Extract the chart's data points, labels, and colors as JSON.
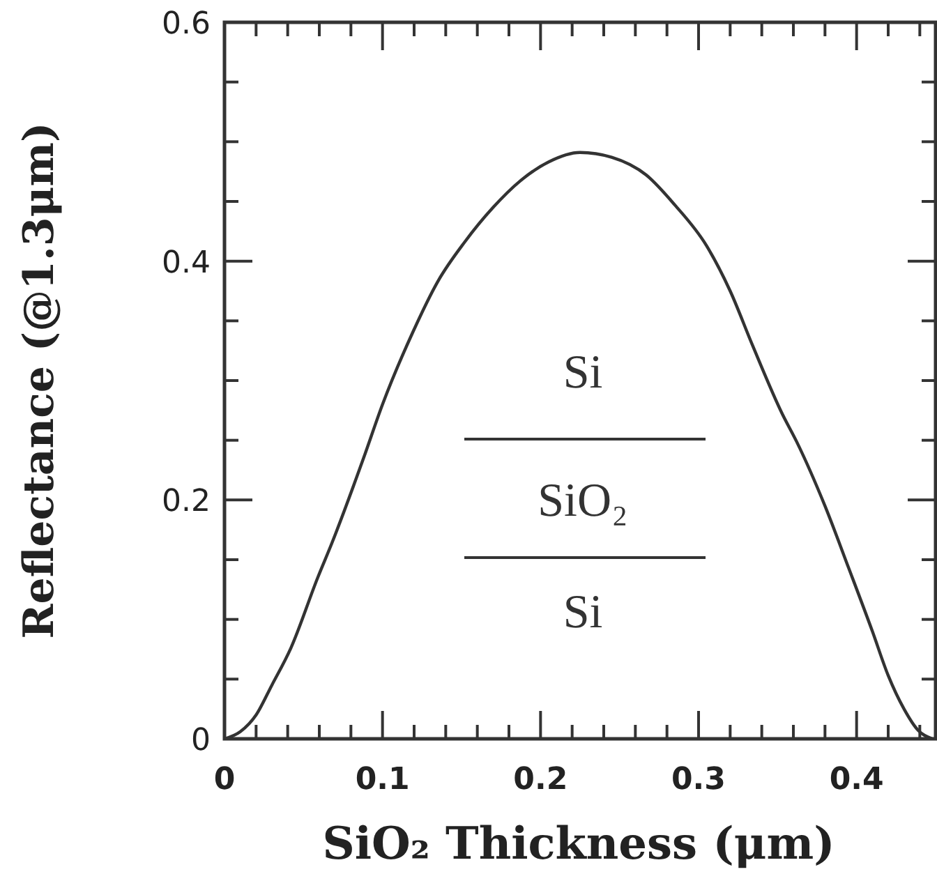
{
  "chart_data": {
    "type": "line",
    "xlabel": "SiO₂ Thickness (μm)",
    "ylabel": "Reflectance (@1.3μm)",
    "annotations": [
      "Si",
      "SiO₂",
      "Si"
    ],
    "x": [
      0,
      0.01,
      0.02,
      0.03,
      0.042,
      0.059,
      0.068,
      0.088,
      0.1,
      0.119,
      0.135,
      0.152,
      0.17,
      0.187,
      0.205,
      0.225,
      0.245,
      0.267,
      0.285,
      0.305,
      0.32,
      0.334,
      0.353,
      0.362,
      0.38,
      0.395,
      0.41,
      0.42,
      0.43,
      0.439,
      0.448
    ],
    "series": [
      {
        "color": "#333333",
        "values": [
          0,
          0.006,
          0.02,
          0.045,
          0.076,
          0.135,
          0.164,
          0.235,
          0.28,
          0.34,
          0.383,
          0.416,
          0.445,
          0.467,
          0.483,
          0.491,
          0.487,
          0.472,
          0.447,
          0.413,
          0.375,
          0.33,
          0.272,
          0.249,
          0.195,
          0.143,
          0.09,
          0.053,
          0.025,
          0.007,
          0
        ]
      }
    ],
    "xlim": [
      0,
      0.45
    ],
    "xticks": [
      0,
      {
        "value": 0.02,
        "label": null
      },
      {
        "value": 0.04,
        "label": null
      },
      {
        "value": 0.06,
        "label": null
      },
      {
        "value": 0.08,
        "label": null
      },
      0.1,
      {
        "value": 0.12,
        "label": null
      },
      {
        "value": 0.14,
        "label": null
      },
      {
        "value": 0.16,
        "label": null
      },
      {
        "value": 0.18,
        "label": null
      },
      0.2,
      {
        "value": 0.22,
        "label": null
      },
      {
        "value": 0.24,
        "label": null
      },
      {
        "value": 0.26,
        "label": null
      },
      {
        "value": 0.28,
        "label": null
      },
      0.3,
      {
        "value": 0.32,
        "label": null
      },
      {
        "value": 0.34,
        "label": null
      },
      {
        "value": 0.36,
        "label": null
      },
      {
        "value": 0.38,
        "label": null
      },
      0.4,
      {
        "value": 0.42,
        "label": null
      },
      {
        "value": 0.44,
        "label": null
      }
    ],
    "ylim": [
      0,
      0.6
    ],
    "yticks": [
      0,
      {
        "value": 0.05,
        "label": null
      },
      {
        "value": 0.1,
        "label": null
      },
      {
        "value": 0.15,
        "label": null
      },
      0.2,
      {
        "value": 0.25,
        "label": null
      },
      {
        "value": 0.3,
        "label": null
      },
      {
        "value": 0.35,
        "label": null
      },
      0.4,
      {
        "value": 0.45,
        "label": null
      },
      {
        "value": 0.5,
        "label": null
      },
      {
        "value": 0.55,
        "label": null
      },
      0.6
    ],
    "grid": false,
    "marker": "none",
    "line_style": "solid"
  }
}
